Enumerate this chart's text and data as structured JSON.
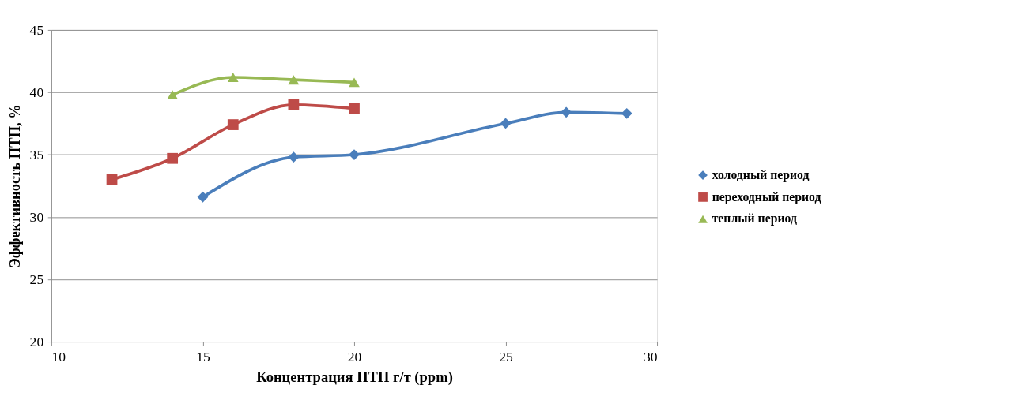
{
  "chart_data": {
    "type": "line",
    "xlabel": "Концентрация ПТП г/т (ppm)",
    "ylabel": "Эффективность ПТП, %",
    "xlim": [
      10,
      30
    ],
    "xticks": [
      10,
      15,
      20,
      25,
      30
    ],
    "ylim": [
      20,
      45
    ],
    "yticks": [
      20,
      25,
      30,
      35,
      40,
      45
    ],
    "grid": "y",
    "legend": "right",
    "line_style": "solid",
    "series": [
      {
        "name": "холодный период",
        "color": "#4a7ebb",
        "marker": "diamond",
        "x": [
          15,
          18,
          20,
          25,
          27,
          29
        ],
        "values": [
          31.6,
          34.8,
          35.0,
          37.5,
          38.4,
          38.3
        ]
      },
      {
        "name": "переходный период",
        "color": "#be4b48",
        "marker": "square",
        "x": [
          12,
          14,
          16,
          18,
          20
        ],
        "values": [
          33.0,
          34.7,
          37.4,
          39.0,
          38.7
        ]
      },
      {
        "name": "теплый период",
        "color": "#98b954",
        "marker": "triangle",
        "x": [
          14,
          16,
          18,
          20
        ],
        "values": [
          39.8,
          41.2,
          41.0,
          40.8
        ]
      }
    ]
  }
}
